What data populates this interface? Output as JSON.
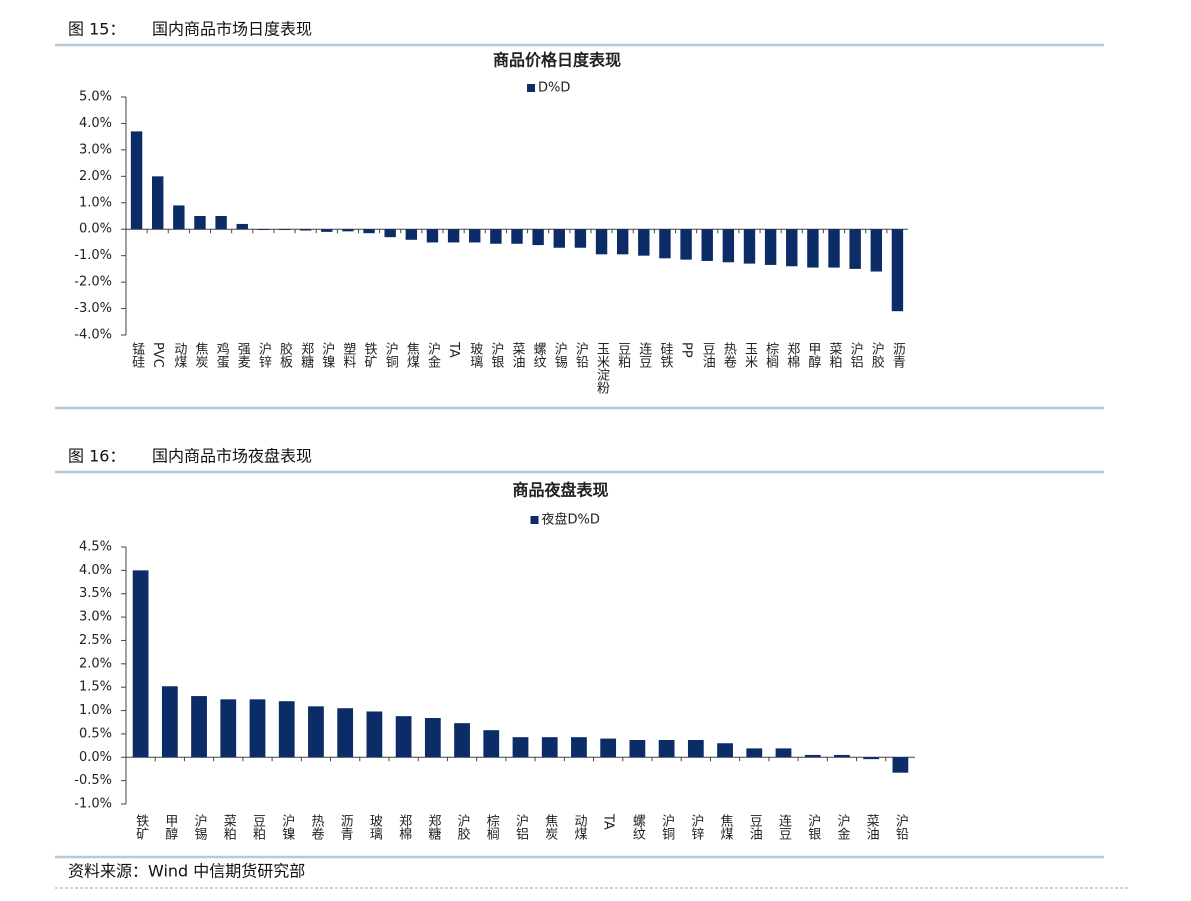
{
  "figures": [
    {
      "label": "图 15：",
      "caption": "国内商品市场日度表现"
    },
    {
      "label": "图 16：",
      "caption": "国内商品市场夜盘表现"
    }
  ],
  "source": "资料来源：Wind  中信期货研究部",
  "chart_data": [
    {
      "type": "bar",
      "title": "商品价格日度表现",
      "categories": [
        "锰硅",
        "PVC",
        "动煤",
        "焦炭",
        "鸡蛋",
        "强麦",
        "沪锌",
        "胶板",
        "郑糖",
        "沪镍",
        "塑料",
        "铁矿",
        "沪铜",
        "焦煤",
        "沪金",
        "TA",
        "玻璃",
        "沪银",
        "菜油",
        "螺纹",
        "沪锡",
        "沪铅",
        "玉米淀粉",
        "豆粕",
        "连豆",
        "硅铁",
        "PP",
        "豆油",
        "热卷",
        "玉米",
        "棕榈",
        "郑棉",
        "甲醇",
        "菜粕",
        "沪铝",
        "沪胶",
        "沥青"
      ],
      "series": [
        {
          "name": "D%D",
          "color": "#0c2c68",
          "values": [
            3.7,
            2.0,
            0.9,
            0.5,
            0.5,
            0.2,
            0,
            0,
            -0.05,
            -0.1,
            -0.08,
            -0.15,
            -0.3,
            -0.4,
            -0.5,
            -0.5,
            -0.5,
            -0.55,
            -0.55,
            -0.6,
            -0.7,
            -0.7,
            -0.95,
            -0.95,
            -1.0,
            -1.1,
            -1.15,
            -1.2,
            -1.25,
            -1.3,
            -1.35,
            -1.4,
            -1.45,
            -1.45,
            -1.5,
            -1.6,
            -3.1
          ]
        }
      ],
      "ylim": [
        -4,
        5
      ],
      "yticks": [
        {
          "value": -4,
          "label": "-4.0%"
        },
        {
          "value": -3,
          "label": "-3.0%"
        },
        {
          "value": -2,
          "label": "-2.0%"
        },
        {
          "value": -1,
          "label": "-1.0%"
        },
        {
          "value": 0,
          "label": "0.0%"
        },
        {
          "value": 1,
          "label": "1.0%"
        },
        {
          "value": 2,
          "label": "2.0%"
        },
        {
          "value": 3,
          "label": "3.0%"
        },
        {
          "value": 4,
          "label": "4.0%"
        },
        {
          "value": 5,
          "label": "5.0%"
        }
      ]
    },
    {
      "type": "bar",
      "title": "商品夜盘表现",
      "categories": [
        "铁矿",
        "甲醇",
        "沪锡",
        "菜粕",
        "豆粕",
        "沪镍",
        "热卷",
        "沥青",
        "玻璃",
        "郑棉",
        "郑糖",
        "沪胶",
        "棕榈",
        "沪铝",
        "焦炭",
        "动煤",
        "TA",
        "螺纹",
        "沪铜",
        "沪锌",
        "焦煤",
        "豆油",
        "连豆",
        "沪银",
        "沪金",
        "菜油",
        "沪铅"
      ],
      "series": [
        {
          "name": "夜盘D%D",
          "color": "#0c2c68",
          "values": [
            4.0,
            1.52,
            1.31,
            1.24,
            1.24,
            1.2,
            1.09,
            1.05,
            0.98,
            0.88,
            0.84,
            0.73,
            0.58,
            0.43,
            0.43,
            0.43,
            0.4,
            0.37,
            0.37,
            0.37,
            0.3,
            0.19,
            0.19,
            0.05,
            0.05,
            -0.04,
            -0.33
          ]
        }
      ],
      "ylim": [
        -1,
        4.5
      ],
      "yticks": [
        {
          "value": -1,
          "label": "-1.0%"
        },
        {
          "value": -0.5,
          "label": "-0.5%"
        },
        {
          "value": 0,
          "label": "0.0%"
        },
        {
          "value": 0.5,
          "label": "0.5%"
        },
        {
          "value": 1,
          "label": "1.0%"
        },
        {
          "value": 1.5,
          "label": "1.5%"
        },
        {
          "value": 2,
          "label": "2.0%"
        },
        {
          "value": 2.5,
          "label": "2.5%"
        },
        {
          "value": 3,
          "label": "3.0%"
        },
        {
          "value": 3.5,
          "label": "3.5%"
        },
        {
          "value": 4,
          "label": "4.0%"
        },
        {
          "value": 4.5,
          "label": "4.5%"
        }
      ]
    }
  ]
}
